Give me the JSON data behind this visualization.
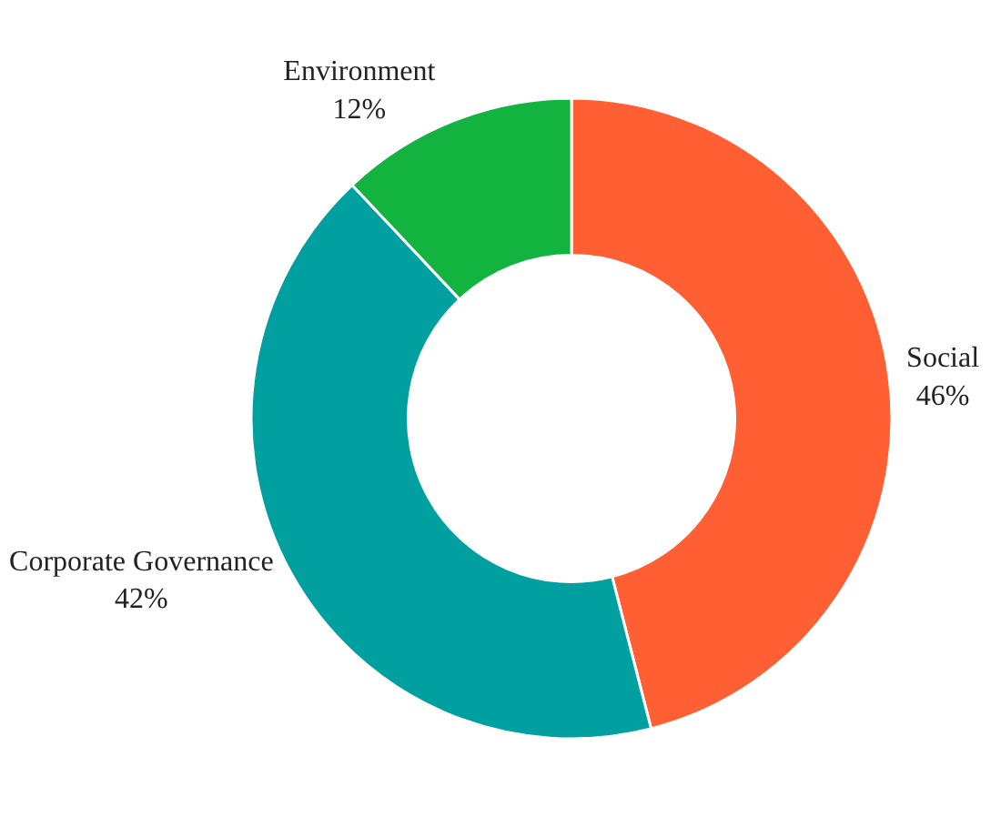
{
  "chart_data": {
    "type": "donut",
    "categories": [
      "Social",
      "Corporate Governance",
      "Environment"
    ],
    "values": [
      46,
      42,
      12
    ],
    "value_labels": [
      "46%",
      "42%",
      "12%"
    ],
    "colors": [
      "#ff5f33",
      "#00a0a0",
      "#13b33f"
    ]
  }
}
